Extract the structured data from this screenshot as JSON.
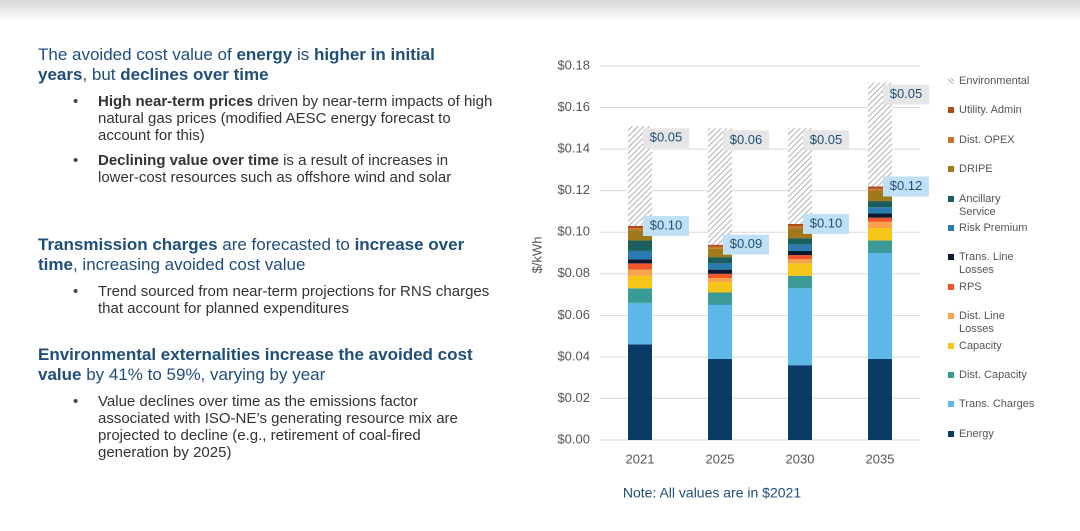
{
  "text": {
    "sections": [
      {
        "heading": [
          {
            "text": "The avoided cost value of "
          },
          {
            "text": "energy",
            "bold": true
          },
          {
            "text": " is "
          },
          {
            "text": "higher in initial years",
            "bold": true
          },
          {
            "text": ", but "
          },
          {
            "text": "declines over time",
            "bold": true
          }
        ],
        "bullets": [
          [
            {
              "text": "High near-term prices",
              "bold": true
            },
            {
              "text": " driven by near-term impacts of high natural gas prices (modified AESC energy forecast to account for this)"
            }
          ],
          [
            {
              "text": "Declining value over time",
              "bold": true
            },
            {
              "text": " is a result of increases in lower-cost resources such as offshore wind and solar"
            }
          ]
        ]
      },
      {
        "heading": [
          {
            "text": "Transmission charges",
            "bold": true
          },
          {
            "text": " are forecasted to "
          },
          {
            "text": "increase over time",
            "bold": true
          },
          {
            "text": ", increasing avoided cost value"
          }
        ],
        "bullets": [
          [
            {
              "text": "Trend sourced from near-term projections for RNS charges that account for planned expenditures"
            }
          ]
        ]
      },
      {
        "heading": [
          {
            "text": "Environmental externalities increase the avoided cost value",
            "bold": true
          },
          {
            "text": " by 41% to 59%, varying by year"
          }
        ],
        "bullets": [
          [
            {
              "text": "Value declines over time as the emissions factor associated with ISO-NE’s generating resource mix are projected to decline (e.g., retirement of coal-fired generation by 2025)"
            }
          ]
        ]
      }
    ]
  },
  "chart_data": {
    "type": "stacked_bar",
    "y_label": "$/kWh",
    "note": "Note: All values are in $2021",
    "categories": [
      "2021",
      "2025",
      "2030",
      "2035"
    ],
    "ylim": [
      0,
      0.18
    ],
    "yticks": [
      {
        "value": 0,
        "label": "$0.00"
      },
      {
        "value": 0.02,
        "label": "$0.02"
      },
      {
        "value": 0.04,
        "label": "$0.04"
      },
      {
        "value": 0.06,
        "label": "$0.06"
      },
      {
        "value": 0.08,
        "label": "$0.08"
      },
      {
        "value": 0.1,
        "label": "$0.10"
      },
      {
        "value": 0.12,
        "label": "$0.12"
      },
      {
        "value": 0.14,
        "label": "$0.14"
      },
      {
        "value": 0.16,
        "label": "$0.16"
      },
      {
        "value": 0.18,
        "label": "$0.18"
      }
    ],
    "grid": true,
    "series": [
      {
        "name": "Energy",
        "color": "#0b3a66",
        "values": [
          0.046,
          0.039,
          0.036,
          0.039
        ]
      },
      {
        "name": "Trans. Charges",
        "color": "#5bb8e8",
        "values": [
          0.02,
          0.026,
          0.037,
          0.051
        ]
      },
      {
        "name": "Dist. Capacity",
        "color": "#3a9a96",
        "values": [
          0.007,
          0.006,
          0.006,
          0.006
        ]
      },
      {
        "name": "Capacity",
        "color": "#f5c518",
        "values": [
          0.006,
          0.005,
          0.006,
          0.006
        ]
      },
      {
        "name": "Dist. Line Losses",
        "color": "#f7a34a",
        "values": [
          0.003,
          0.002,
          0.002,
          0.003
        ]
      },
      {
        "name": "RPS",
        "color": "#f0562a",
        "values": [
          0.003,
          0.002,
          0.002,
          0.002
        ]
      },
      {
        "name": "Trans. Line Losses",
        "color": "#0a1a33",
        "values": [
          0.002,
          0.002,
          0.002,
          0.002
        ]
      },
      {
        "name": "Risk Premium",
        "color": "#2a7bb0",
        "values": [
          0.004,
          0.003,
          0.003,
          0.003
        ]
      },
      {
        "name": "Ancillary Service",
        "color": "#1b5e5e",
        "values": [
          0.005,
          0.003,
          0.003,
          0.003
        ]
      },
      {
        "name": "DRIPE",
        "color": "#a07a1a",
        "values": [
          0.005,
          0.004,
          0.005,
          0.005
        ]
      },
      {
        "name": "Dist. OPEX",
        "color": "#c8742a",
        "values": [
          0.001,
          0.001,
          0.001,
          0.001
        ]
      },
      {
        "name": "Utility. Admin",
        "color": "#b04a1a",
        "values": [
          0.001,
          0.001,
          0.001,
          0.001
        ]
      },
      {
        "name": "Environmental",
        "color": "#b0b0b0",
        "hatch": true,
        "values": [
          0.048,
          0.056,
          0.046,
          0.05
        ],
        "value_labels": [
          "$0.05",
          "$0.06",
          "$0.05",
          "$0.05"
        ]
      }
    ],
    "total_labels": [
      {
        "value": 0.103,
        "label": "$0.10"
      },
      {
        "value": 0.094,
        "label": "$0.09"
      },
      {
        "value": 0.104,
        "label": "$0.10"
      },
      {
        "value": 0.122,
        "label": "$0.12"
      }
    ]
  }
}
